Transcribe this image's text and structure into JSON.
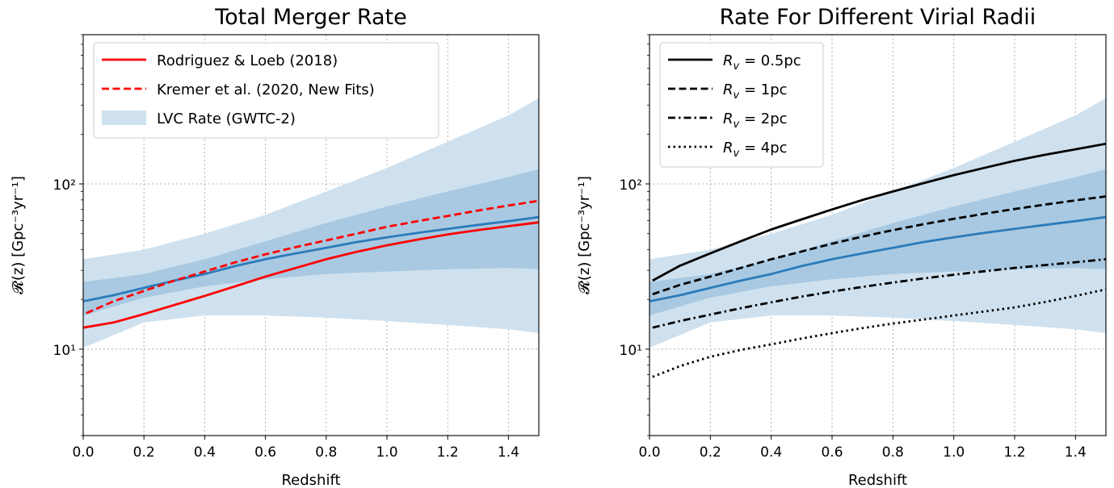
{
  "chart_data": [
    {
      "type": "line",
      "title": "Total Merger Rate",
      "xlabel": "Redshift",
      "ylabel": "𝓡(z) [Gpc⁻³yr⁻¹]",
      "xlim": [
        0,
        1.5
      ],
      "ylim": [
        3,
        800
      ],
      "yscale": "log",
      "grid": true,
      "legend_position": "top-left",
      "xticks": [
        "0.0",
        "0.2",
        "0.4",
        "0.6",
        "0.8",
        "1.0",
        "1.2",
        "1.4"
      ],
      "yticks": [
        {
          "value": 10,
          "label": "10¹"
        },
        {
          "value": 100,
          "label": "10²"
        }
      ],
      "bands": [
        {
          "name": "LVC Rate (GWTC-2)",
          "color": "#cfe1ee",
          "x": [
            0,
            0.2,
            0.4,
            0.6,
            0.8,
            1.0,
            1.2,
            1.4,
            1.5
          ],
          "lower": [
            10.2,
            14.5,
            16.0,
            16.0,
            15.5,
            14.8,
            14.0,
            13.2,
            12.5
          ],
          "upper": [
            35,
            40,
            50,
            65,
            90,
            125,
            180,
            260,
            330
          ]
        },
        {
          "name": "",
          "color": "#a9c9e2",
          "x": [
            0,
            0.2,
            0.4,
            0.6,
            0.8,
            1.0,
            1.2,
            1.4,
            1.5
          ],
          "lower": [
            16.0,
            20.5,
            24.0,
            26.5,
            28.5,
            29.5,
            30.5,
            31.0,
            30.5
          ],
          "upper": [
            25.5,
            28.5,
            35.0,
            45.0,
            58.0,
            73.0,
            90.0,
            110.0,
            123.0
          ]
        }
      ],
      "series": [
        {
          "name": "",
          "color": "#2b7bba",
          "dash": "solid",
          "x": [
            0,
            0.1,
            0.2,
            0.3,
            0.4,
            0.5,
            0.6,
            0.7,
            0.8,
            0.9,
            1.0,
            1.1,
            1.2,
            1.3,
            1.4,
            1.5
          ],
          "values": [
            19.5,
            21.2,
            23.5,
            26.0,
            28.5,
            31.8,
            35.0,
            38.0,
            41.0,
            44.5,
            47.5,
            50.5,
            53.5,
            56.5,
            59.5,
            63.0
          ]
        },
        {
          "name": "Rodriguez & Loeb (2018)",
          "color": "#ff0000",
          "dash": "solid",
          "x": [
            0,
            0.1,
            0.2,
            0.3,
            0.4,
            0.5,
            0.6,
            0.7,
            0.8,
            0.9,
            1.0,
            1.1,
            1.2,
            1.3,
            1.4,
            1.5
          ],
          "values": [
            13.5,
            14.5,
            16.3,
            18.5,
            21.0,
            24.0,
            27.5,
            31.0,
            35.0,
            38.8,
            42.5,
            46.0,
            49.5,
            52.5,
            55.5,
            58.5
          ]
        },
        {
          "name": "Kremer et al. (2020, New Fits)",
          "color": "#ff0000",
          "dash": "dashed",
          "x": [
            0.01,
            0.1,
            0.2,
            0.3,
            0.4,
            0.5,
            0.6,
            0.7,
            0.8,
            0.9,
            1.0,
            1.1,
            1.2,
            1.3,
            1.4,
            1.5
          ],
          "values": [
            16.5,
            19.5,
            22.5,
            26.0,
            29.5,
            33.5,
            37.5,
            41.5,
            45.5,
            50.0,
            55.0,
            59.5,
            64.0,
            69.0,
            74.0,
            79.0
          ]
        }
      ]
    },
    {
      "type": "line",
      "title": "Rate For Different Virial Radii",
      "xlabel": "Redshift",
      "ylabel": "𝓡(z) [Gpc⁻³yr⁻¹]",
      "xlim": [
        0,
        1.5
      ],
      "ylim": [
        3,
        800
      ],
      "yscale": "log",
      "grid": true,
      "legend_position": "top-left",
      "xticks": [
        "0.0",
        "0.2",
        "0.4",
        "0.6",
        "0.8",
        "1.0",
        "1.2",
        "1.4"
      ],
      "yticks": [
        {
          "value": 10,
          "label": "10¹"
        },
        {
          "value": 100,
          "label": "10²"
        }
      ],
      "bands": [
        {
          "name": "",
          "color": "#cfe1ee",
          "x": [
            0,
            0.2,
            0.4,
            0.6,
            0.8,
            1.0,
            1.2,
            1.4,
            1.5
          ],
          "lower": [
            10.2,
            14.5,
            16.0,
            16.0,
            15.5,
            14.8,
            14.0,
            13.2,
            12.5
          ],
          "upper": [
            35,
            40,
            50,
            65,
            90,
            125,
            180,
            260,
            330
          ]
        },
        {
          "name": "",
          "color": "#a9c9e2",
          "x": [
            0,
            0.2,
            0.4,
            0.6,
            0.8,
            1.0,
            1.2,
            1.4,
            1.5
          ],
          "lower": [
            16.0,
            20.5,
            24.0,
            26.5,
            28.5,
            29.5,
            30.5,
            31.0,
            30.5
          ],
          "upper": [
            25.5,
            28.5,
            35.0,
            45.0,
            58.0,
            73.0,
            90.0,
            110.0,
            123.0
          ]
        }
      ],
      "series": [
        {
          "name": "",
          "color": "#2b7bba",
          "dash": "solid",
          "x": [
            0,
            0.1,
            0.2,
            0.3,
            0.4,
            0.5,
            0.6,
            0.7,
            0.8,
            0.9,
            1.0,
            1.1,
            1.2,
            1.3,
            1.4,
            1.5
          ],
          "values": [
            19.5,
            21.2,
            23.5,
            26.0,
            28.5,
            31.8,
            35.0,
            38.0,
            41.0,
            44.5,
            47.5,
            50.5,
            53.5,
            56.5,
            59.5,
            63.0
          ]
        },
        {
          "name": "R_v = 0.5pc",
          "label_main": "R",
          "label_sub": "v",
          "label_rest": " = 0.5pc",
          "color": "#000000",
          "dash": "solid",
          "x": [
            0.01,
            0.1,
            0.2,
            0.3,
            0.4,
            0.5,
            0.6,
            0.7,
            0.8,
            0.9,
            1.0,
            1.1,
            1.2,
            1.3,
            1.4,
            1.5
          ],
          "values": [
            26,
            32,
            38,
            45,
            53,
            61,
            70,
            80,
            90,
            101,
            113,
            125,
            138,
            150,
            162,
            175
          ]
        },
        {
          "name": "R_v = 1pc",
          "label_main": "R",
          "label_sub": "v",
          "label_rest": " = 1pc",
          "color": "#000000",
          "dash": "dashed",
          "x": [
            0.01,
            0.1,
            0.2,
            0.3,
            0.4,
            0.5,
            0.6,
            0.7,
            0.8,
            0.9,
            1.0,
            1.1,
            1.2,
            1.3,
            1.4,
            1.5
          ],
          "values": [
            21.5,
            24.5,
            27.5,
            31.0,
            35.0,
            39.0,
            43.5,
            48.0,
            52.5,
            57.0,
            61.5,
            66.0,
            70.5,
            75.0,
            79.5,
            84.0
          ]
        },
        {
          "name": "R_v = 2pc",
          "label_main": "R",
          "label_sub": "v",
          "label_rest": " = 2pc",
          "color": "#000000",
          "dash": "dashdot",
          "x": [
            0.01,
            0.1,
            0.2,
            0.3,
            0.4,
            0.5,
            0.6,
            0.7,
            0.8,
            0.9,
            1.0,
            1.1,
            1.2,
            1.3,
            1.4,
            1.5
          ],
          "values": [
            13.5,
            14.8,
            16.2,
            17.7,
            19.2,
            20.8,
            22.3,
            23.8,
            25.3,
            26.8,
            28.2,
            29.6,
            31.0,
            32.3,
            33.6,
            35.0
          ]
        },
        {
          "name": "R_v = 4pc",
          "label_main": "R",
          "label_sub": "v",
          "label_rest": " = 4pc",
          "color": "#000000",
          "dash": "dotted",
          "x": [
            0.01,
            0.1,
            0.2,
            0.3,
            0.4,
            0.5,
            0.6,
            0.7,
            0.8,
            0.9,
            1.0,
            1.1,
            1.2,
            1.3,
            1.4,
            1.5
          ],
          "values": [
            6.8,
            7.9,
            9.0,
            9.9,
            10.7,
            11.6,
            12.5,
            13.4,
            14.3,
            15.1,
            16.0,
            16.9,
            17.9,
            19.3,
            21.0,
            23.0
          ]
        }
      ]
    }
  ]
}
